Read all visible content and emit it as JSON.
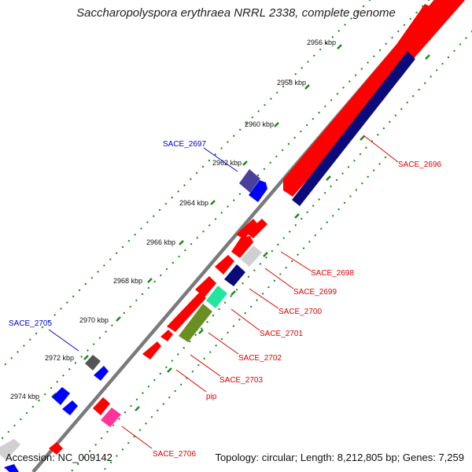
{
  "title": "Saccharopolyspora erythraea NRRL 2338, complete genome",
  "footer": {
    "accession": "Accession: NC_009142",
    "summary": "Topology: circular; Length: 8,212,805 bp; Genes: 7,259"
  },
  "ticks": [
    "2956 kbp",
    "2958 kbp",
    "2960 kbp",
    "2962 kbp",
    "2964 kbp",
    "2966 kbp",
    "2968 kbp",
    "2970 kbp",
    "2972 kbp",
    "2974 kbp"
  ],
  "gene_labels": [
    "SACE_2696",
    "SACE_2697",
    "SACE_2698",
    "SACE_2699",
    "SACE_2700",
    "SACE_2701",
    "SACE_2702",
    "SACE_2703",
    "pip",
    "SACE_2705",
    "SACE_2706"
  ],
  "colors": {
    "red": "#ff0000",
    "navy": "#0a0a7a",
    "blue": "#0000ff",
    "slate": "#4a3f9a",
    "light_gray": "#d0d0d0",
    "dark_gray": "#555555",
    "mint": "#22e6a0",
    "olive": "#6b8e23",
    "pink": "#ff3399",
    "tick_green": "#1a8a1a",
    "backbone": "#7a7a7a"
  }
}
